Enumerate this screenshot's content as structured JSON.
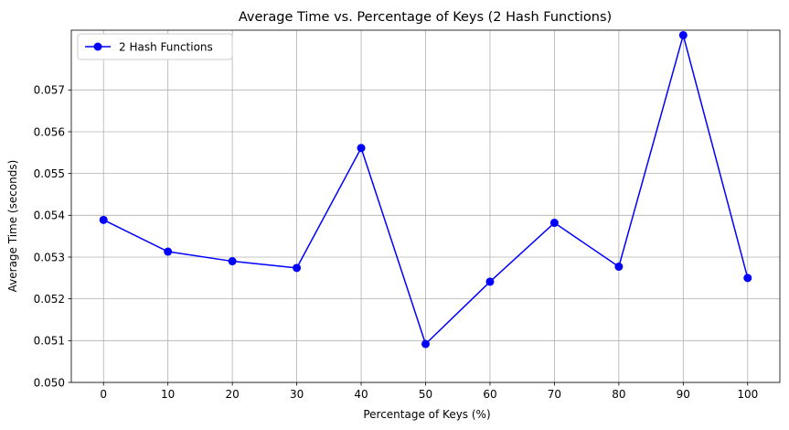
{
  "chart_data": {
    "type": "line",
    "title": "Average Time vs. Percentage of Keys (2 Hash Functions)",
    "xlabel": "Percentage of Keys (%)",
    "ylabel": "Average Time (seconds)",
    "x": [
      0,
      10,
      20,
      30,
      40,
      50,
      60,
      70,
      80,
      90,
      100
    ],
    "xticks": [
      "0",
      "10",
      "20",
      "30",
      "40",
      "50",
      "60",
      "70",
      "80",
      "90",
      "100"
    ],
    "yticks": [
      "0.050",
      "0.051",
      "0.052",
      "0.053",
      "0.054",
      "0.055",
      "0.056",
      "0.057"
    ],
    "ytick_values": [
      0.05,
      0.051,
      0.052,
      0.053,
      0.054,
      0.055,
      0.056,
      0.057
    ],
    "xlim": [
      -5,
      105
    ],
    "ylim": [
      0.05,
      0.05843
    ],
    "grid": true,
    "legend_position": "top-left",
    "series": [
      {
        "name": "2 Hash Functions",
        "color": "#0000ff",
        "marker": "circle",
        "values": [
          0.05389,
          0.05313,
          0.0529,
          0.05274,
          0.05561,
          0.05092,
          0.05241,
          0.05382,
          0.05277,
          0.05831,
          0.0525
        ]
      }
    ]
  }
}
